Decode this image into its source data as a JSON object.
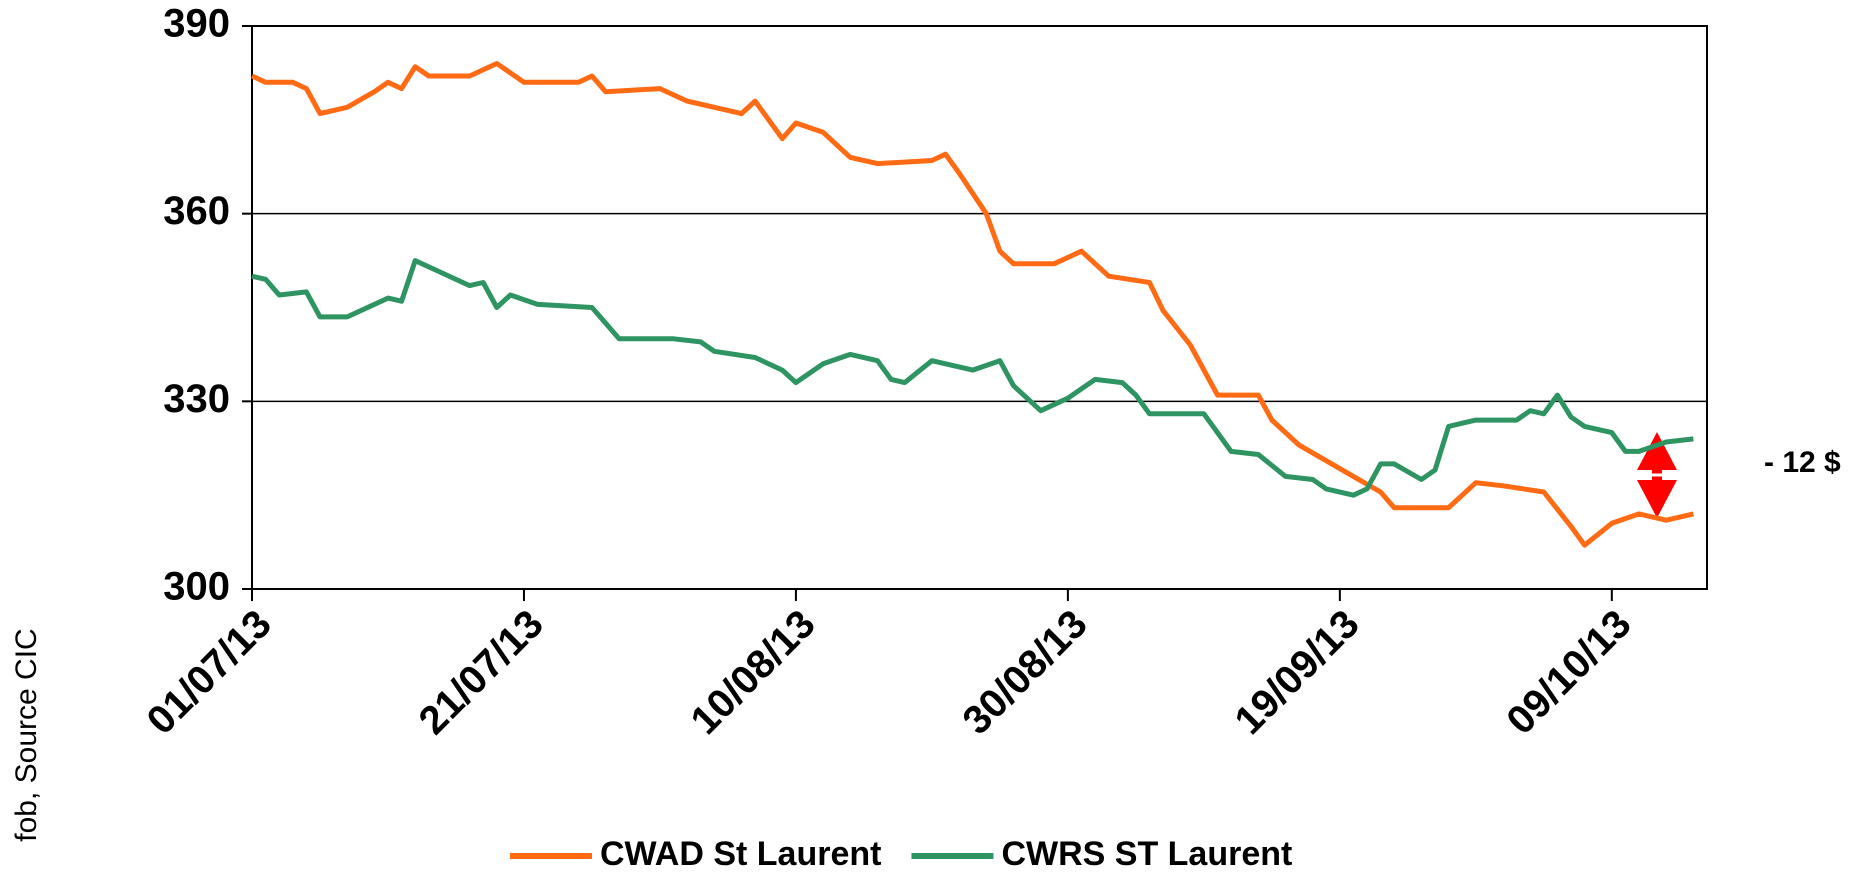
{
  "chart_data": {
    "type": "line",
    "y_axis_label": "fob, Source CIC",
    "annotation": "- 12 $",
    "xlim": [
      "01/07/13",
      "16/10/13"
    ],
    "xticks": [
      "01/07/13",
      "21/07/13",
      "10/08/13",
      "30/08/13",
      "19/09/13",
      "09/10/13"
    ],
    "ylim": [
      300,
      390
    ],
    "yticks": [
      300,
      330,
      360,
      390
    ],
    "grid": true,
    "legend": "bottom",
    "series": [
      {
        "name": "CWAD St Laurent",
        "color": "#ff6a13",
        "x": [
          "01/07/13",
          "02/07/13",
          "04/07/13",
          "05/07/13",
          "06/07/13",
          "08/07/13",
          "10/07/13",
          "11/07/13",
          "12/07/13",
          "13/07/13",
          "14/07/13",
          "17/07/13",
          "19/07/13",
          "21/07/13",
          "25/07/13",
          "26/07/13",
          "27/07/13",
          "31/07/13",
          "02/08/13",
          "06/08/13",
          "07/08/13",
          "09/08/13",
          "10/08/13",
          "12/08/13",
          "14/08/13",
          "16/08/13",
          "20/08/13",
          "21/08/13",
          "22/08/13",
          "24/08/13",
          "25/08/13",
          "26/08/13",
          "29/08/13",
          "31/08/13",
          "02/09/13",
          "05/09/13",
          "06/09/13",
          "08/09/13",
          "10/09/13",
          "13/09/13",
          "14/09/13",
          "16/09/13",
          "18/09/13",
          "20/09/13",
          "22/09/13",
          "23/09/13",
          "27/09/13",
          "29/09/13",
          "01/10/13",
          "04/10/13",
          "06/10/13",
          "07/10/13",
          "09/10/13",
          "11/10/13",
          "13/10/13",
          "15/10/13"
        ],
        "values": [
          382,
          381,
          381,
          380,
          376,
          377,
          379.5,
          381,
          380,
          383.5,
          382,
          382,
          384,
          381,
          381,
          382,
          379.5,
          380,
          378,
          376,
          378,
          372,
          374.5,
          373,
          369,
          368,
          368.5,
          369.5,
          366.5,
          360,
          354,
          352,
          352,
          354,
          350,
          349,
          344.5,
          339,
          331,
          331,
          327,
          323,
          320.5,
          318,
          315.5,
          313,
          313,
          317,
          316.5,
          315.5,
          310,
          307,
          310.5,
          312,
          311,
          312
        ]
      },
      {
        "name": "CWRS ST Laurent",
        "color": "#2e9461",
        "x": [
          "01/07/13",
          "02/07/13",
          "03/07/13",
          "05/07/13",
          "06/07/13",
          "08/07/13",
          "11/07/13",
          "12/07/13",
          "13/07/13",
          "15/07/13",
          "17/07/13",
          "18/07/13",
          "19/07/13",
          "20/07/13",
          "22/07/13",
          "26/07/13",
          "27/07/13",
          "28/07/13",
          "01/08/13",
          "03/08/13",
          "04/08/13",
          "07/08/13",
          "09/08/13",
          "10/08/13",
          "12/08/13",
          "14/08/13",
          "16/08/13",
          "17/08/13",
          "18/08/13",
          "20/08/13",
          "23/08/13",
          "25/08/13",
          "26/08/13",
          "28/08/13",
          "30/08/13",
          "01/09/13",
          "03/09/13",
          "04/09/13",
          "05/09/13",
          "09/09/13",
          "10/09/13",
          "11/09/13",
          "13/09/13",
          "15/09/13",
          "17/09/13",
          "18/09/13",
          "20/09/13",
          "21/09/13",
          "22/09/13",
          "23/09/13",
          "25/09/13",
          "26/09/13",
          "27/09/13",
          "28/09/13",
          "29/09/13",
          "02/10/13",
          "03/10/13",
          "04/10/13",
          "05/10/13",
          "06/10/13",
          "07/10/13",
          "09/10/13",
          "10/10/13",
          "11/10/13",
          "13/10/13",
          "15/10/13"
        ],
        "values": [
          350,
          349.5,
          347,
          347.5,
          343.5,
          343.5,
          346.5,
          346,
          352.5,
          350.5,
          348.5,
          349,
          345,
          347,
          345.5,
          345,
          342.5,
          340,
          340,
          339.5,
          338,
          337,
          335,
          333,
          336,
          337.5,
          336.5,
          333.5,
          333,
          336.5,
          335,
          336.5,
          332.5,
          328.5,
          330.5,
          333.5,
          333,
          331,
          328,
          328,
          325,
          322,
          321.5,
          318,
          317.5,
          316,
          315,
          316,
          320,
          320,
          317.5,
          319,
          326,
          326.5,
          327,
          327,
          328.5,
          328,
          331,
          327.5,
          326,
          325,
          322,
          322,
          323.5,
          324
        ]
      }
    ]
  }
}
